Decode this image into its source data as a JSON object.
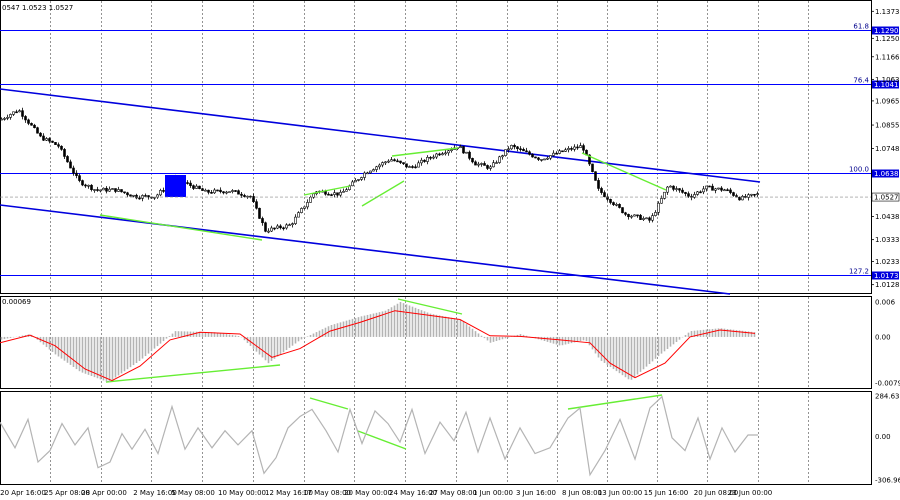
{
  "header": {
    "ohlc_text": "0547 1.0523 1.0527"
  },
  "colors": {
    "background": "#ffffff",
    "frame": "#000000",
    "grid": "#000000",
    "candle": "#000000",
    "level_line": "#0000ff",
    "channel_line": "#0000dd",
    "divergence": "#66ee33",
    "macd_signal": "#ff0000",
    "macd_hist": "#b4b4b4",
    "cci_line": "#b4b4b4",
    "marker_box": "#0000ff",
    "label_box": "#0000dd",
    "label_text": "#ffffff"
  },
  "chart_data": [
    {
      "type": "candlestick",
      "panel": "price",
      "ylim": [
        1.009,
        1.142
      ],
      "price_ticks": [
        "1.1373",
        "1.1250",
        "1.1166",
        "1.1063",
        "1.0965",
        "1.0855",
        "1.0748",
        "1.0638",
        "1.0527",
        "1.0438",
        "1.0333",
        "1.0233",
        "1.0128",
        "1.0173"
      ],
      "price_tick_values": [
        1.1373,
        1.125,
        1.1166,
        1.1063,
        1.0965,
        1.0855,
        1.0748,
        1.0638,
        1.0527,
        1.0438,
        1.0333,
        1.0233,
        1.0128,
        1.0173
      ],
      "current_price": {
        "label": "1.0527",
        "value": 1.0527
      },
      "fib_levels": [
        {
          "name": "61.8",
          "price_label": "1.1290",
          "value": 1.129
        },
        {
          "name": "76.4",
          "price_label": "1.1041",
          "value": 1.1041
        },
        {
          "name": "100.0",
          "price_label": "1.0638",
          "value": 1.0638
        },
        {
          "name": "127.2",
          "price_label": "1.0173",
          "value": 1.0173
        }
      ],
      "time_labels": [
        "20 Apr 16:00",
        "25 Apr 08:00",
        "28 Apr 00:00",
        "2 May 16:00",
        "5 May 08:00",
        "10 May 00:00",
        "12 May 16:00",
        "17 May 08:00",
        "20 May 00:00",
        "24 May 16:00",
        "27 May 08:00",
        "1 Jun 00:00",
        "3 Jun 16:00",
        "8 Jun 08:00",
        "13 Jun 00:00",
        "15 Jun 16:00",
        "20 Jun 08:00",
        "23 Jun 00:00"
      ],
      "close_path": [
        {
          "x": 0,
          "y": 1.088
        },
        {
          "x": 18,
          "y": 1.0925
        },
        {
          "x": 40,
          "y": 1.08
        },
        {
          "x": 58,
          "y": 1.076
        },
        {
          "x": 78,
          "y": 1.06
        },
        {
          "x": 95,
          "y": 1.056
        },
        {
          "x": 115,
          "y": 1.056
        },
        {
          "x": 135,
          "y": 1.053
        },
        {
          "x": 155,
          "y": 1.053
        },
        {
          "x": 175,
          "y": 1.061
        },
        {
          "x": 205,
          "y": 1.055
        },
        {
          "x": 230,
          "y": 1.0555
        },
        {
          "x": 250,
          "y": 1.053
        },
        {
          "x": 265,
          "y": 1.0375
        },
        {
          "x": 290,
          "y": 1.04
        },
        {
          "x": 315,
          "y": 1.0555
        },
        {
          "x": 340,
          "y": 1.054
        },
        {
          "x": 365,
          "y": 1.064
        },
        {
          "x": 390,
          "y": 1.07
        },
        {
          "x": 410,
          "y": 1.066
        },
        {
          "x": 435,
          "y": 1.072
        },
        {
          "x": 458,
          "y": 1.076
        },
        {
          "x": 475,
          "y": 1.068
        },
        {
          "x": 490,
          "y": 1.066
        },
        {
          "x": 510,
          "y": 1.076
        },
        {
          "x": 540,
          "y": 1.07
        },
        {
          "x": 565,
          "y": 1.074
        },
        {
          "x": 582,
          "y": 1.076
        },
        {
          "x": 598,
          "y": 1.056
        },
        {
          "x": 625,
          "y": 1.045
        },
        {
          "x": 650,
          "y": 1.042
        },
        {
          "x": 668,
          "y": 1.058
        },
        {
          "x": 690,
          "y": 1.053
        },
        {
          "x": 705,
          "y": 1.057
        },
        {
          "x": 725,
          "y": 1.056
        },
        {
          "x": 740,
          "y": 1.052
        },
        {
          "x": 758,
          "y": 1.054
        }
      ]
    },
    {
      "type": "histogram",
      "panel": "MACD",
      "label": "0.00069",
      "ylim": [
        -0.00791,
        0.006
      ],
      "axis_labels": [
        "0.006",
        "0.00",
        "-0.00791"
      ],
      "axis_values": [
        0.006,
        0.0,
        -0.00791
      ],
      "histogram": [
        {
          "x": 0,
          "y": -0.0005
        },
        {
          "x": 30,
          "y": 0.0005
        },
        {
          "x": 55,
          "y": -0.003
        },
        {
          "x": 80,
          "y": -0.006
        },
        {
          "x": 108,
          "y": -0.0078
        },
        {
          "x": 140,
          "y": -0.004
        },
        {
          "x": 175,
          "y": 0.001
        },
        {
          "x": 215,
          "y": 0.0008
        },
        {
          "x": 240,
          "y": 0.0001
        },
        {
          "x": 268,
          "y": -0.0045
        },
        {
          "x": 300,
          "y": -0.0005
        },
        {
          "x": 330,
          "y": 0.002
        },
        {
          "x": 360,
          "y": 0.0035
        },
        {
          "x": 385,
          "y": 0.0045
        },
        {
          "x": 400,
          "y": 0.006
        },
        {
          "x": 430,
          "y": 0.004
        },
        {
          "x": 460,
          "y": 0.003
        },
        {
          "x": 490,
          "y": -0.001
        },
        {
          "x": 520,
          "y": 0.0005
        },
        {
          "x": 560,
          "y": -0.0015
        },
        {
          "x": 585,
          "y": -0.0005
        },
        {
          "x": 600,
          "y": -0.004
        },
        {
          "x": 630,
          "y": -0.0075
        },
        {
          "x": 660,
          "y": -0.003
        },
        {
          "x": 690,
          "y": 0.001
        },
        {
          "x": 720,
          "y": 0.0015
        },
        {
          "x": 755,
          "y": 0.0008
        }
      ],
      "signal": [
        {
          "x": 0,
          "y": -0.001
        },
        {
          "x": 30,
          "y": 0.0003
        },
        {
          "x": 55,
          "y": -0.0015
        },
        {
          "x": 85,
          "y": -0.0055
        },
        {
          "x": 112,
          "y": -0.0075
        },
        {
          "x": 140,
          "y": -0.005
        },
        {
          "x": 170,
          "y": -0.0005
        },
        {
          "x": 200,
          "y": 0.0008
        },
        {
          "x": 240,
          "y": 0.0005
        },
        {
          "x": 272,
          "y": -0.0035
        },
        {
          "x": 300,
          "y": -0.002
        },
        {
          "x": 330,
          "y": 0.001
        },
        {
          "x": 360,
          "y": 0.0025
        },
        {
          "x": 395,
          "y": 0.0045
        },
        {
          "x": 425,
          "y": 0.0038
        },
        {
          "x": 460,
          "y": 0.003
        },
        {
          "x": 490,
          "y": 0.0002
        },
        {
          "x": 520,
          "y": 0.0001
        },
        {
          "x": 560,
          "y": -0.0005
        },
        {
          "x": 590,
          "y": -0.001
        },
        {
          "x": 610,
          "y": -0.0045
        },
        {
          "x": 635,
          "y": -0.007
        },
        {
          "x": 665,
          "y": -0.0045
        },
        {
          "x": 690,
          "y": 0.0
        },
        {
          "x": 720,
          "y": 0.0012
        },
        {
          "x": 755,
          "y": 0.0006
        }
      ]
    },
    {
      "type": "line",
      "panel": "CCI",
      "ylim": [
        -306.964,
        284.6313
      ],
      "axis_labels": [
        "284.6313",
        "0.00",
        "-306.964"
      ],
      "axis_values": [
        284.6313,
        0.0,
        -306.964
      ],
      "values": [
        {
          "x": 0,
          "y": 100
        },
        {
          "x": 15,
          "y": -80
        },
        {
          "x": 28,
          "y": 120
        },
        {
          "x": 38,
          "y": -180
        },
        {
          "x": 50,
          "y": -100
        },
        {
          "x": 62,
          "y": 90
        },
        {
          "x": 75,
          "y": -60
        },
        {
          "x": 88,
          "y": 60
        },
        {
          "x": 98,
          "y": -220
        },
        {
          "x": 110,
          "y": -180
        },
        {
          "x": 122,
          "y": 20
        },
        {
          "x": 132,
          "y": -90
        },
        {
          "x": 145,
          "y": 50
        },
        {
          "x": 158,
          "y": -120
        },
        {
          "x": 172,
          "y": 210
        },
        {
          "x": 185,
          "y": -90
        },
        {
          "x": 198,
          "y": 60
        },
        {
          "x": 212,
          "y": -80
        },
        {
          "x": 225,
          "y": 40
        },
        {
          "x": 238,
          "y": -60
        },
        {
          "x": 252,
          "y": 40
        },
        {
          "x": 264,
          "y": -260
        },
        {
          "x": 276,
          "y": -150
        },
        {
          "x": 288,
          "y": 60
        },
        {
          "x": 300,
          "y": 140
        },
        {
          "x": 312,
          "y": 190
        },
        {
          "x": 326,
          "y": 40
        },
        {
          "x": 338,
          "y": -110
        },
        {
          "x": 350,
          "y": 190
        },
        {
          "x": 362,
          "y": -50
        },
        {
          "x": 375,
          "y": 180
        },
        {
          "x": 388,
          "y": 90
        },
        {
          "x": 400,
          "y": -40
        },
        {
          "x": 412,
          "y": 190
        },
        {
          "x": 425,
          "y": -120
        },
        {
          "x": 440,
          "y": 100
        },
        {
          "x": 454,
          "y": -30
        },
        {
          "x": 466,
          "y": 170
        },
        {
          "x": 478,
          "y": -110
        },
        {
          "x": 490,
          "y": 130
        },
        {
          "x": 505,
          "y": -160
        },
        {
          "x": 520,
          "y": 60
        },
        {
          "x": 535,
          "y": -120
        },
        {
          "x": 550,
          "y": -80
        },
        {
          "x": 568,
          "y": 130
        },
        {
          "x": 580,
          "y": 200
        },
        {
          "x": 590,
          "y": -270
        },
        {
          "x": 605,
          "y": -100
        },
        {
          "x": 620,
          "y": 120
        },
        {
          "x": 635,
          "y": -160
        },
        {
          "x": 650,
          "y": 200
        },
        {
          "x": 662,
          "y": 280
        },
        {
          "x": 672,
          "y": -10
        },
        {
          "x": 685,
          "y": -100
        },
        {
          "x": 698,
          "y": 130
        },
        {
          "x": 710,
          "y": -160
        },
        {
          "x": 722,
          "y": 60
        },
        {
          "x": 735,
          "y": -110
        },
        {
          "x": 748,
          "y": 10
        },
        {
          "x": 758,
          "y": 10
        }
      ]
    }
  ]
}
